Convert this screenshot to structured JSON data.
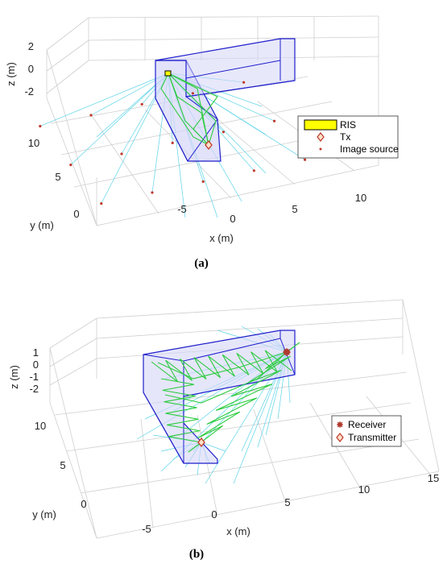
{
  "chart_data": [
    {
      "type": "scatter",
      "caption": "(a)",
      "xlabel": "x (m)",
      "ylabel": "y (m)",
      "zlabel": "z (m)",
      "x_ticks": [
        "-5",
        "0",
        "5",
        "10"
      ],
      "y_ticks": [
        "0",
        "5",
        "10"
      ],
      "z_ticks": [
        "2",
        "0",
        "-2"
      ],
      "grid": true,
      "legend_position": "right",
      "legend": [
        "RIS",
        "Tx",
        "Image source"
      ],
      "series": [
        {
          "name": "RIS",
          "x": [
            -4.5
          ],
          "y": [
            10
          ],
          "z": [
            1
          ]
        },
        {
          "name": "Tx",
          "x": [
            -1
          ],
          "y": [
            5
          ],
          "z": [
            0
          ]
        },
        {
          "name": "Image source",
          "x": [
            -9,
            -5,
            -1,
            3,
            7,
            -9,
            -5,
            -1,
            3,
            7,
            -9,
            -5,
            -1,
            3,
            7
          ],
          "y": [
            2,
            2,
            2,
            2,
            2,
            6,
            6,
            6,
            6,
            6,
            10,
            10,
            10,
            10,
            10
          ],
          "z": [
            0,
            0,
            0,
            0,
            0,
            0,
            0,
            0,
            0,
            0,
            0,
            0,
            0,
            0,
            0
          ]
        }
      ],
      "colors": {
        "room": "#1f1fcc",
        "room_fill": "#c6c6f5",
        "rays": "#2ecc40",
        "paths": "#5bd3e8",
        "ris": "#ffff00",
        "tx": "#c0392b"
      }
    },
    {
      "type": "scatter",
      "caption": "(b)",
      "xlabel": "x (m)",
      "ylabel": "y (m)",
      "zlabel": "z (m)",
      "x_ticks": [
        "-5",
        "0",
        "5",
        "10",
        "15"
      ],
      "y_ticks": [
        "0",
        "5",
        "10"
      ],
      "z_ticks": [
        "1",
        "0",
        "-1",
        "-2"
      ],
      "grid": true,
      "legend_position": "right",
      "legend": [
        "Receiver",
        "Transmitter"
      ],
      "series": [
        {
          "name": "Receiver",
          "x": [
            10
          ],
          "y": [
            12
          ],
          "z": [
            0
          ]
        },
        {
          "name": "Transmitter",
          "x": [
            -1
          ],
          "y": [
            3
          ],
          "z": [
            -1
          ]
        }
      ],
      "colors": {
        "room": "#1f1fcc",
        "room_fill": "#c6c6f5",
        "rays": "#2ecc40",
        "paths": "#5bd3e8",
        "rx": "#b03a2e",
        "tx": "#c0392b"
      }
    }
  ]
}
